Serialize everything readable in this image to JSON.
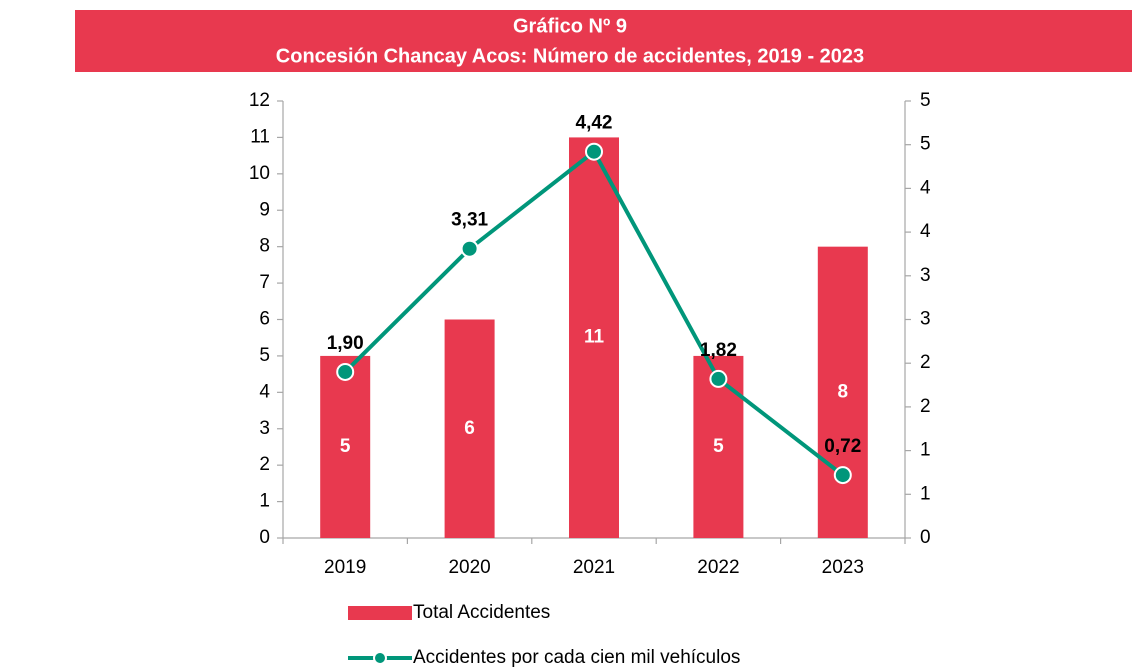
{
  "chart_data": {
    "type": "combo",
    "title": "Gráfico Nº  9",
    "subtitle": "Concesión Chancay Acos: Número de accidentes, 2019 - 2023",
    "categories": [
      "2019",
      "2020",
      "2021",
      "2022",
      "2023"
    ],
    "series": [
      {
        "name": "Total Accidentes",
        "type": "bar",
        "color": "#e8394f",
        "values": [
          5,
          6,
          11,
          5,
          8
        ]
      },
      {
        "name": "Accidentes por cada cien mil vehículos",
        "type": "line",
        "axis": "y2",
        "color": "#00967a",
        "values": [
          1.9,
          3.31,
          4.42,
          1.82,
          0.72
        ],
        "value_labels": [
          "1,90",
          "3,31",
          "4,42",
          "1,82",
          "0,72"
        ]
      }
    ],
    "ylim": [
      0,
      12
    ],
    "yticks": [
      0,
      1,
      2,
      3,
      4,
      5,
      6,
      7,
      8,
      9,
      10,
      11,
      12
    ],
    "y2lim": [
      0,
      5
    ],
    "y2ticks": [
      0,
      {
        "value": 0.5,
        "label": "1"
      },
      1,
      {
        "value": 1.5,
        "label": "2"
      },
      2,
      {
        "value": 2.5,
        "label": "3"
      },
      3,
      {
        "value": 3.5,
        "label": "4"
      },
      4,
      {
        "value": 4.5,
        "label": "5"
      },
      5
    ]
  }
}
